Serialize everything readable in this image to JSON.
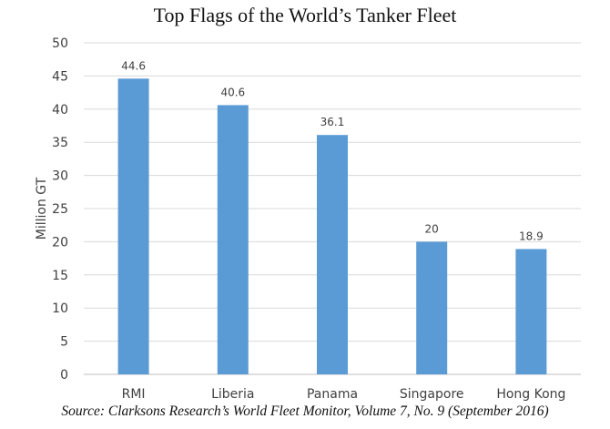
{
  "chart_data": {
    "type": "bar",
    "title": "Top Flags of the World’s Tanker Fleet",
    "xlabel": "",
    "ylabel": "Million GT",
    "categories": [
      "RMI",
      "Liberia",
      "Panama",
      "Singapore",
      "Hong Kong"
    ],
    "values": [
      44.6,
      40.6,
      36.1,
      20,
      18.9
    ],
    "data_labels": [
      "44.6",
      "40.6",
      "36.1",
      "20",
      "18.9"
    ],
    "ylim": [
      0,
      50
    ],
    "yticks": [
      0,
      5,
      10,
      15,
      20,
      25,
      30,
      35,
      40,
      45,
      50
    ],
    "grid": true,
    "legend": "none",
    "bar_color": "#5b9bd5",
    "source": "Source: Clarksons Research’s World Fleet Monitor, Volume 7, No. 9 (September 2016)"
  }
}
